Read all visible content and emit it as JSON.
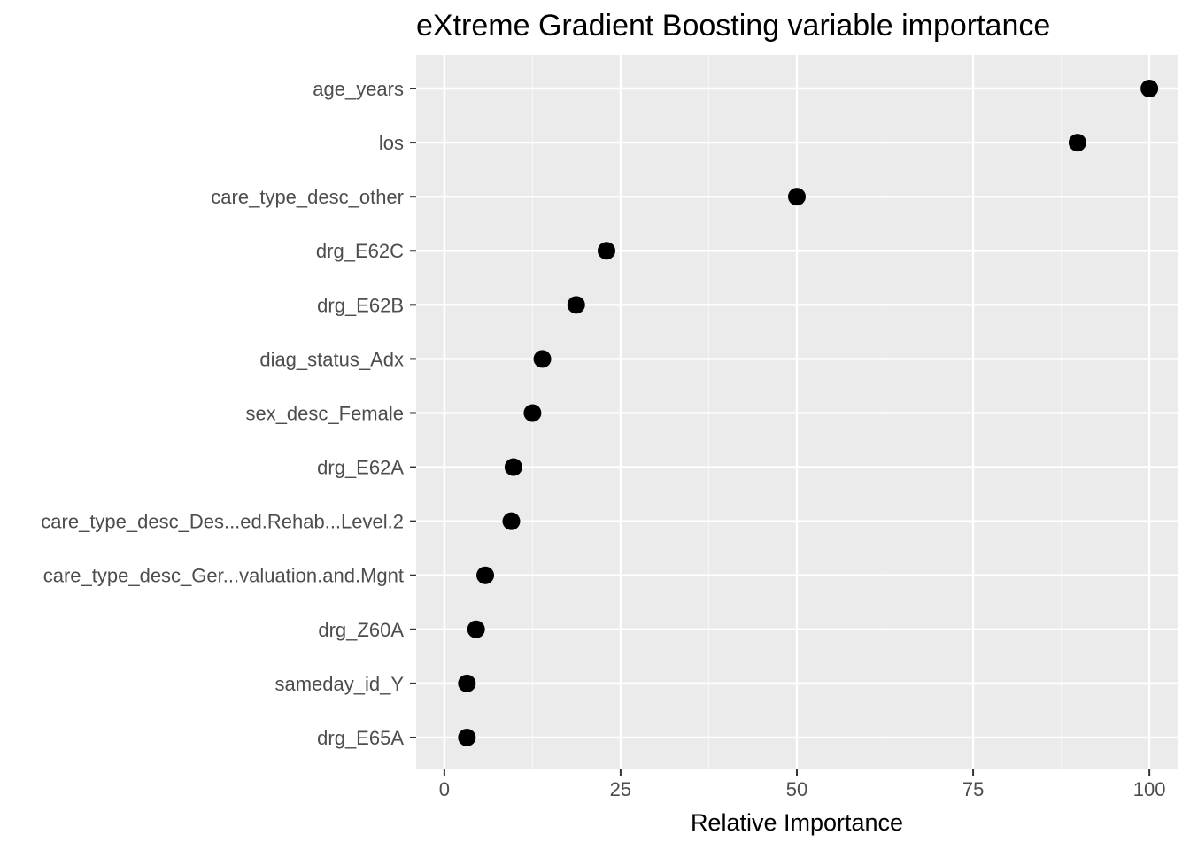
{
  "chart_data": {
    "type": "scatter",
    "title": "eXtreme Gradient Boosting variable importance",
    "xlabel": "Relative Importance",
    "ylabel": "",
    "xlim": [
      -4,
      104
    ],
    "xticks": [
      0,
      25,
      50,
      75,
      100
    ],
    "xtick_labels": [
      "0",
      "25",
      "50",
      "75",
      "100"
    ],
    "grid": true,
    "legend": "none",
    "categories": [
      "age_years",
      "los",
      "care_type_desc_other",
      "drg_E62C",
      "drg_E62B",
      "diag_status_Adx",
      "sex_desc_Female",
      "drg_E62A",
      "care_type_desc_Des...ed.Rehab...Level.2",
      "care_type_desc_Ger...valuation.and.Mgnt",
      "drg_Z60A",
      "sameday_id_Y",
      "drg_E65A"
    ],
    "values": [
      100,
      89.8,
      50,
      23,
      18.7,
      13.9,
      12.5,
      9.8,
      9.5,
      5.8,
      4.5,
      3.2,
      3.2
    ]
  },
  "colors": {
    "panel_background": "#ebebeb",
    "grid_major": "#ffffff",
    "grid_minor": "#f5f5f5",
    "point": "#000000",
    "tick_text": "#4d4d4d",
    "tick_mark": "#333333"
  }
}
